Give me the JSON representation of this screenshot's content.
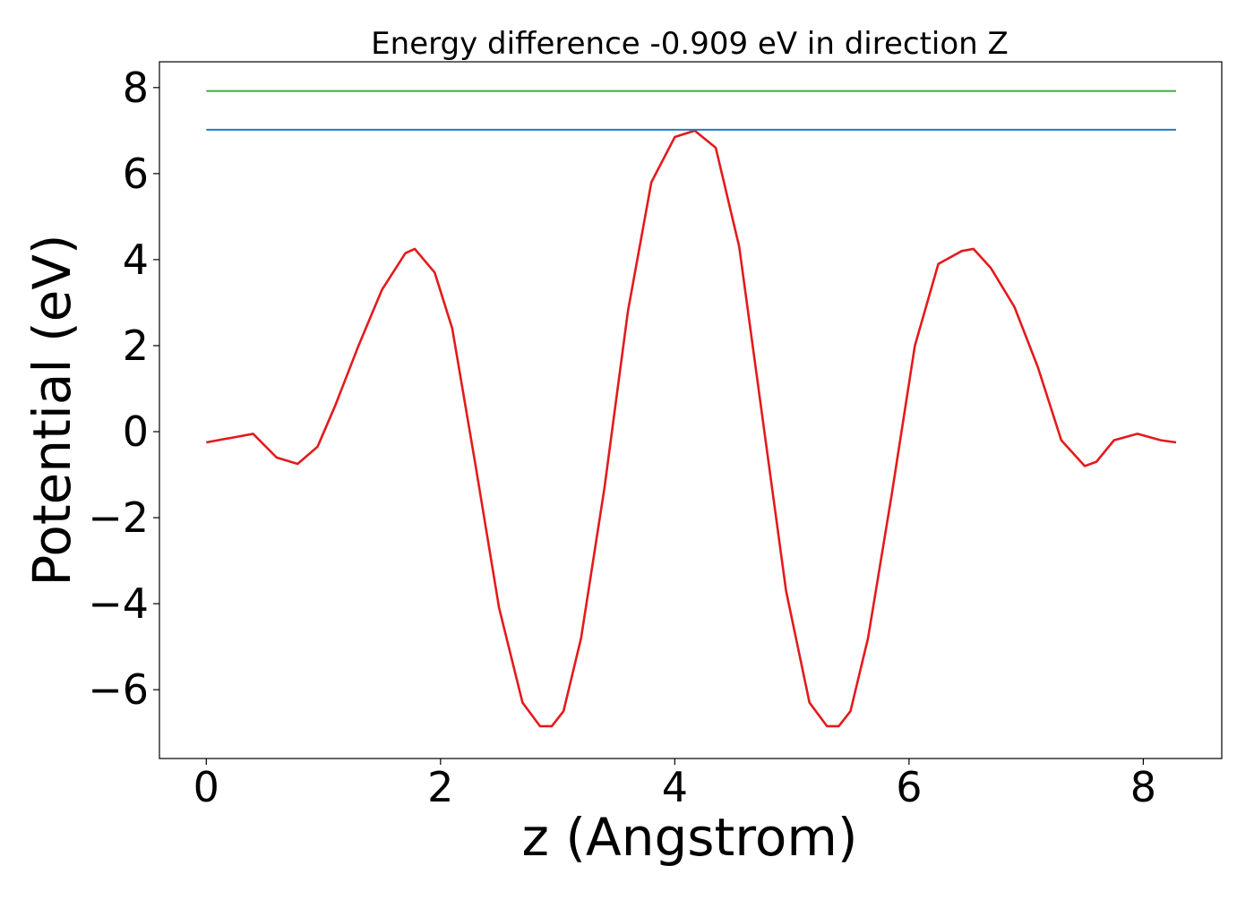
{
  "chart_data": {
    "type": "line",
    "title": "Energy difference -0.909 eV in direction Z",
    "xlabel": "z (Angstrom)",
    "ylabel": "Potential (eV)",
    "xlim": [
      -0.4,
      8.67
    ],
    "ylim": [
      -7.6,
      8.6
    ],
    "xticks": [
      0,
      2,
      4,
      6,
      8
    ],
    "xtick_labels": [
      "0",
      "2",
      "4",
      "6",
      "8"
    ],
    "yticks": [
      -6,
      -4,
      -2,
      0,
      2,
      4,
      6,
      8
    ],
    "ytick_labels": [
      "−6",
      "−4",
      "−2",
      "0",
      "2",
      "4",
      "6",
      "8"
    ],
    "grid": false,
    "legend": "none",
    "series": [
      {
        "color": "#e31a1c",
        "x": [
          0,
          0.2,
          0.4,
          0.6,
          0.78,
          0.95,
          1.1,
          1.3,
          1.5,
          1.7,
          1.78,
          1.95,
          2.1,
          2.3,
          2.5,
          2.7,
          2.85,
          2.95,
          3.05,
          3.2,
          3.4,
          3.6,
          3.8,
          4.0,
          4.17,
          4.35,
          4.55,
          4.75,
          4.95,
          5.15,
          5.3,
          5.4,
          5.5,
          5.65,
          5.85,
          6.05,
          6.25,
          6.45,
          6.55,
          6.7,
          6.9,
          7.1,
          7.3,
          7.5,
          7.6,
          7.75,
          7.95,
          8.15,
          8.28
        ],
        "y": [
          -0.25,
          -0.15,
          -0.05,
          -0.6,
          -0.75,
          -0.35,
          0.6,
          2.0,
          3.3,
          4.15,
          4.25,
          3.7,
          2.4,
          -0.8,
          -4.1,
          -6.3,
          -6.85,
          -6.85,
          -6.5,
          -4.8,
          -1.3,
          2.8,
          5.8,
          6.85,
          7.0,
          6.6,
          4.3,
          0.3,
          -3.7,
          -6.3,
          -6.85,
          -6.85,
          -6.5,
          -4.8,
          -1.5,
          2.0,
          3.9,
          4.2,
          4.25,
          3.8,
          2.9,
          1.5,
          -0.2,
          -0.8,
          -0.7,
          -0.2,
          -0.05,
          -0.2,
          -0.25
        ]
      },
      {
        "color": "#2978bd",
        "x": [
          0,
          8.28
        ],
        "y": [
          7.02,
          7.02
        ]
      },
      {
        "color": "#3daa3d",
        "x": [
          0,
          8.28
        ],
        "y": [
          7.92,
          7.92
        ]
      }
    ]
  }
}
